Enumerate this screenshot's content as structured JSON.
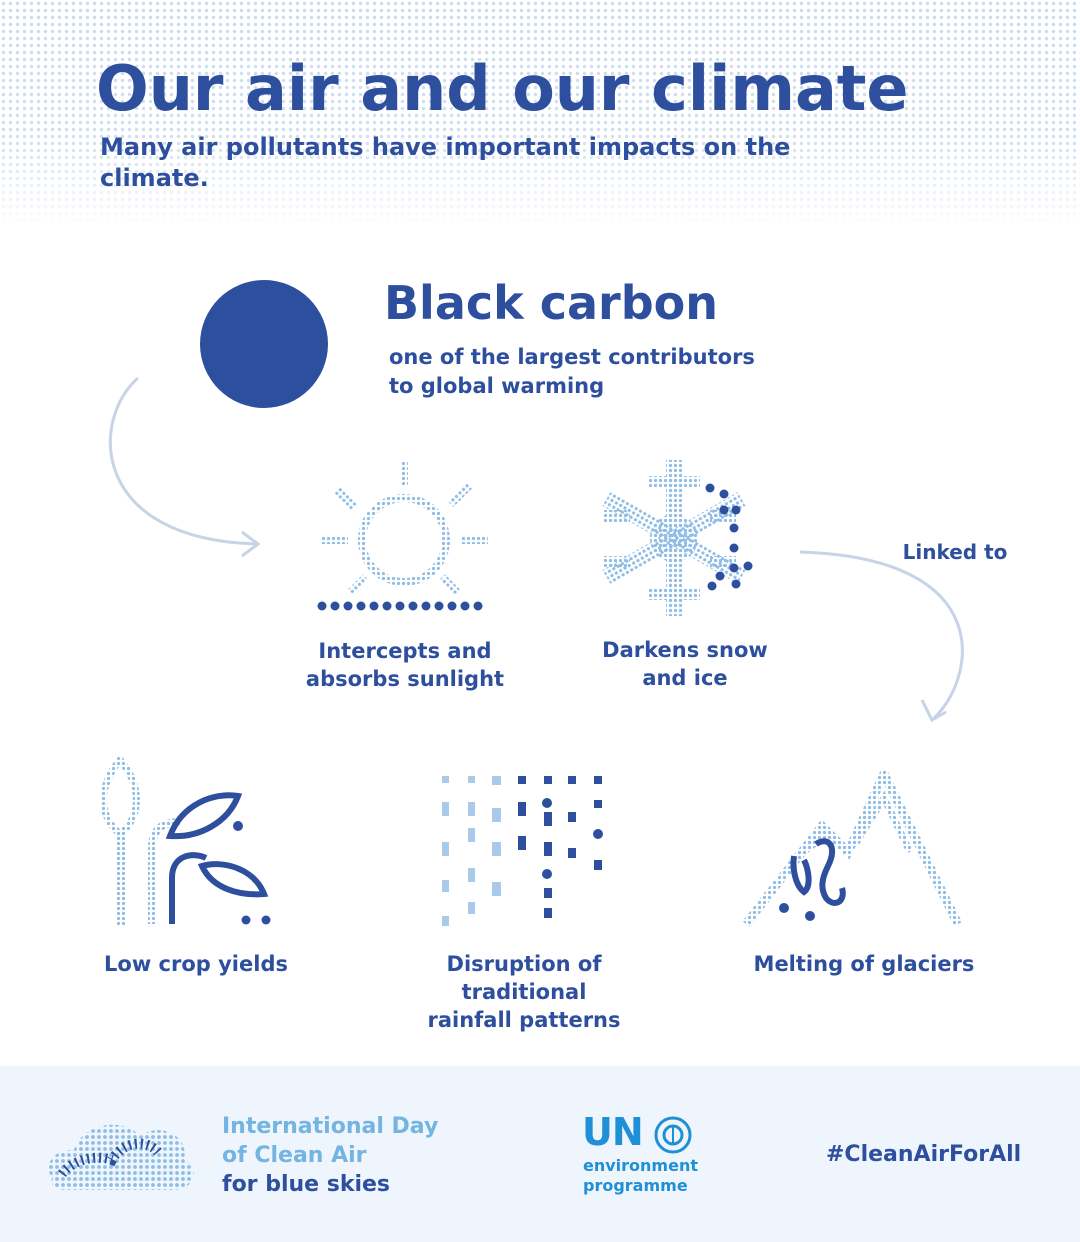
{
  "header": {
    "title": "Our air and our climate",
    "subtitle": "Many air pollutants have important impacts on the climate."
  },
  "black_carbon": {
    "title": "Black carbon",
    "description_line1": "one of the largest contributors",
    "description_line2": "to global warming"
  },
  "effects": {
    "sunlight": {
      "line1": "Intercepts and",
      "line2": "absorbs sunlight",
      "icon": "sun-icon"
    },
    "snow": {
      "line1": "Darkens snow",
      "line2": "and ice",
      "icon": "snowflake-icon"
    },
    "linked_to": "Linked to"
  },
  "impacts": {
    "crops": {
      "line1": "Low crop yields",
      "icon": "plant-icon"
    },
    "rainfall": {
      "line1": "Disruption of",
      "line2": "traditional",
      "line3": "rainfall patterns",
      "icon": "rain-icon"
    },
    "glaciers": {
      "line1": "Melting of glaciers",
      "icon": "mountain-icon"
    }
  },
  "footer": {
    "day_line1": "International Day",
    "day_line2": "of Clean Air",
    "day_line3": "for blue skies",
    "un_letters": "UN",
    "un_line1": "environment",
    "un_line2": "programme",
    "hashtag": "#CleanAirForAll"
  },
  "colors": {
    "primary": "#2d4f9e",
    "light_blue": "#74b4e0",
    "dot_blue": "#a9cbe9",
    "footer_bg": "#eef5fc"
  }
}
